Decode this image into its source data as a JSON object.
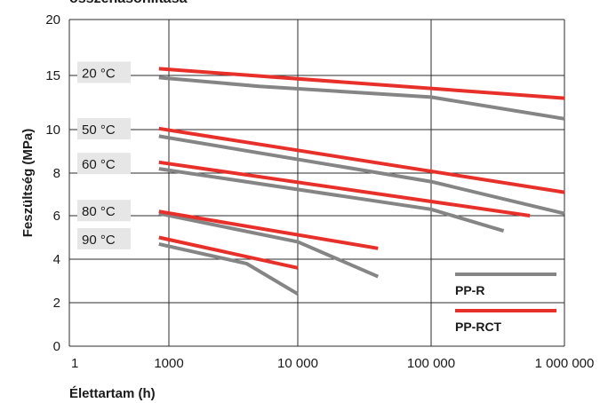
{
  "title": "összehasonlítása",
  "chart_data": {
    "type": "line",
    "xlabel": "Élettartam (h)",
    "ylabel": "Feszültség (MPa)",
    "x_ticks": [
      {
        "value": 1,
        "label": "1"
      },
      {
        "value": 1000,
        "label": "1000"
      },
      {
        "value": 10000,
        "label": "10 000"
      },
      {
        "value": 100000,
        "label": "100 000"
      },
      {
        "value": 1000000,
        "label": "1 000 000"
      }
    ],
    "y_ticks": [
      {
        "value": 0,
        "label": "0"
      },
      {
        "value": 2,
        "label": "2"
      },
      {
        "value": 4,
        "label": "4"
      },
      {
        "value": 6,
        "label": "6"
      },
      {
        "value": 8,
        "label": "8"
      },
      {
        "value": 10,
        "label": "10"
      },
      {
        "value": 15,
        "label": "15"
      },
      {
        "value": 20,
        "label": "20"
      }
    ],
    "grid": true,
    "legend": {
      "placement": "bottom-right",
      "entries": [
        {
          "name": "PP-R",
          "color": "#858585"
        },
        {
          "name": "PP-RCT",
          "color": "#e8302a"
        }
      ]
    },
    "colors": {
      "PP-R": "#858585",
      "PP-RCT": "#e8302a",
      "label_bg": "#e6e6e6"
    },
    "series": [
      {
        "temp_label": "20 °C",
        "material": "PP-R",
        "points": [
          [
            500,
            14.8
          ],
          [
            5000,
            14.0
          ],
          [
            100000,
            13.0
          ],
          [
            1000000,
            11.0
          ]
        ]
      },
      {
        "temp_label": "20 °C",
        "material": "PP-RCT",
        "points": [
          [
            500,
            15.6
          ],
          [
            1000000,
            12.9
          ]
        ]
      },
      {
        "temp_label": "50 °C",
        "material": "PP-R",
        "points": [
          [
            500,
            9.7
          ],
          [
            100000,
            7.6
          ],
          [
            1000000,
            6.1
          ]
        ]
      },
      {
        "temp_label": "50 °C",
        "material": "PP-RCT",
        "points": [
          [
            500,
            10.1
          ],
          [
            1000000,
            7.1
          ]
        ]
      },
      {
        "temp_label": "60 °C",
        "material": "PP-R",
        "points": [
          [
            500,
            8.2
          ],
          [
            100000,
            6.3
          ],
          [
            350000,
            5.3
          ]
        ]
      },
      {
        "temp_label": "60 °C",
        "material": "PP-RCT",
        "points": [
          [
            500,
            8.5
          ],
          [
            550000,
            6.0
          ]
        ]
      },
      {
        "temp_label": "80 °C",
        "material": "PP-R",
        "points": [
          [
            500,
            6.1
          ],
          [
            10000,
            4.8
          ],
          [
            40000,
            3.2
          ]
        ]
      },
      {
        "temp_label": "80 °C",
        "material": "PP-RCT",
        "points": [
          [
            500,
            6.2
          ],
          [
            40000,
            4.5
          ]
        ]
      },
      {
        "temp_label": "90 °C",
        "material": "PP-R",
        "points": [
          [
            500,
            4.7
          ],
          [
            4000,
            3.8
          ],
          [
            10000,
            2.4
          ]
        ]
      },
      {
        "temp_label": "90 °C",
        "material": "PP-RCT",
        "points": [
          [
            500,
            5.0
          ],
          [
            10000,
            3.6
          ]
        ]
      }
    ],
    "temp_labels": [
      {
        "label": "20 °C",
        "y": 15.2
      },
      {
        "label": "50 °C",
        "y": 10.0
      },
      {
        "label": "60 °C",
        "y": 8.4
      },
      {
        "label": "80 °C",
        "y": 6.2
      },
      {
        "label": "90 °C",
        "y": 4.9
      }
    ]
  }
}
